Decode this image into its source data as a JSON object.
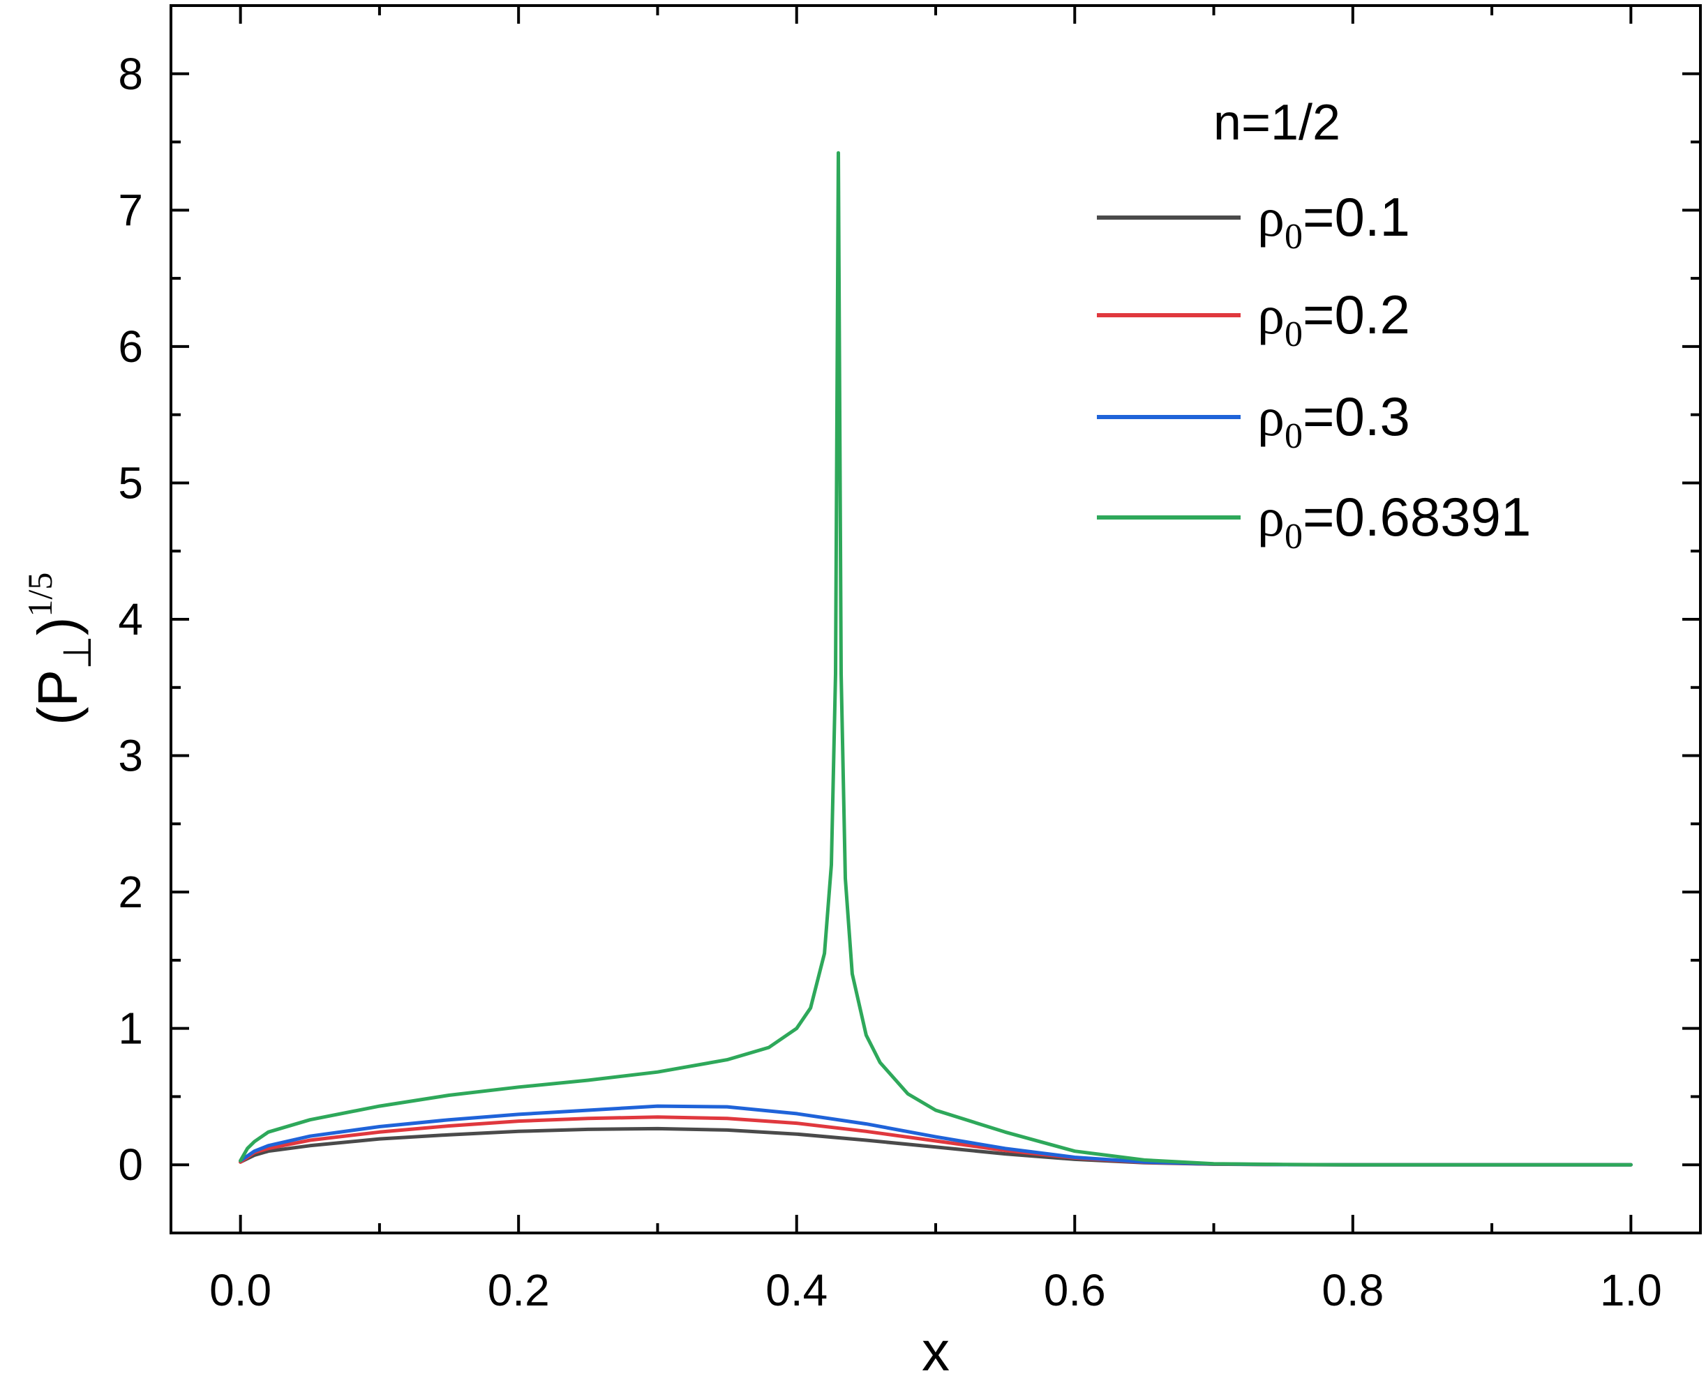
{
  "chart_data": {
    "type": "line",
    "xlabel": "x",
    "ylabel": {
      "open": "(P",
      "sub": "⊥",
      "close": ")",
      "sup": "1/5"
    },
    "xlim": [
      -0.05,
      1.05
    ],
    "ylim": [
      -0.5,
      8.5
    ],
    "xticks": [
      0.0,
      0.2,
      0.4,
      0.6,
      0.8,
      1.0
    ],
    "xtick_labels": [
      "0.0",
      "0.2",
      "0.4",
      "0.6",
      "0.8",
      "1.0"
    ],
    "yticks": [
      0,
      1,
      2,
      3,
      4,
      5,
      6,
      7,
      8
    ],
    "ytick_labels": [
      "0",
      "1",
      "2",
      "3",
      "4",
      "5",
      "6",
      "7",
      "8"
    ],
    "grid": false,
    "legend_title": "n=1/2",
    "legend_position": "top-right",
    "series": [
      {
        "name": "ρ0=0.1",
        "label_symbol": "ρ",
        "label_sub": "0",
        "label_value": "=0.1",
        "color": "#4a4a4a",
        "x": [
          0.0,
          0.01,
          0.02,
          0.05,
          0.1,
          0.15,
          0.2,
          0.25,
          0.3,
          0.35,
          0.4,
          0.45,
          0.5,
          0.55,
          0.6,
          0.65,
          0.7,
          0.75,
          0.8,
          0.9,
          1.0
        ],
        "y": [
          0.02,
          0.07,
          0.1,
          0.14,
          0.19,
          0.22,
          0.245,
          0.26,
          0.265,
          0.255,
          0.225,
          0.18,
          0.13,
          0.08,
          0.04,
          0.015,
          0.004,
          0.001,
          0.0,
          0.0,
          0.0
        ]
      },
      {
        "name": "ρ0=0.2",
        "label_symbol": "ρ",
        "label_sub": "0",
        "label_value": "=0.2",
        "color": "#e0383e",
        "x": [
          0.0,
          0.01,
          0.02,
          0.05,
          0.1,
          0.15,
          0.2,
          0.25,
          0.3,
          0.35,
          0.4,
          0.45,
          0.5,
          0.55,
          0.6,
          0.65,
          0.7,
          0.75,
          0.8,
          0.9,
          1.0
        ],
        "y": [
          0.02,
          0.09,
          0.12,
          0.18,
          0.24,
          0.285,
          0.32,
          0.34,
          0.35,
          0.34,
          0.305,
          0.245,
          0.175,
          0.105,
          0.05,
          0.018,
          0.005,
          0.001,
          0.0,
          0.0,
          0.0
        ]
      },
      {
        "name": "ρ0=0.3",
        "label_symbol": "ρ",
        "label_sub": "0",
        "label_value": "=0.3",
        "color": "#1f63d9",
        "x": [
          0.0,
          0.01,
          0.02,
          0.05,
          0.1,
          0.15,
          0.2,
          0.25,
          0.3,
          0.35,
          0.4,
          0.45,
          0.5,
          0.55,
          0.6,
          0.65,
          0.7,
          0.75,
          0.8,
          0.9,
          1.0
        ],
        "y": [
          0.03,
          0.1,
          0.14,
          0.21,
          0.28,
          0.33,
          0.37,
          0.4,
          0.43,
          0.425,
          0.375,
          0.3,
          0.205,
          0.12,
          0.055,
          0.02,
          0.006,
          0.001,
          0.0,
          0.0,
          0.0
        ]
      },
      {
        "name": "ρ0=0.68391",
        "label_symbol": "ρ",
        "label_sub": "0",
        "label_value": "=0.68391",
        "color": "#2ea85a",
        "x": [
          0.0,
          0.005,
          0.01,
          0.02,
          0.05,
          0.1,
          0.15,
          0.2,
          0.25,
          0.3,
          0.35,
          0.38,
          0.4,
          0.41,
          0.42,
          0.425,
          0.428,
          0.43,
          0.432,
          0.435,
          0.44,
          0.45,
          0.46,
          0.48,
          0.5,
          0.55,
          0.6,
          0.65,
          0.7,
          0.75,
          0.8,
          0.9,
          1.0
        ],
        "y": [
          0.03,
          0.12,
          0.17,
          0.24,
          0.33,
          0.43,
          0.51,
          0.57,
          0.62,
          0.68,
          0.77,
          0.86,
          1.0,
          1.15,
          1.55,
          2.2,
          3.6,
          7.42,
          3.6,
          2.1,
          1.4,
          0.95,
          0.75,
          0.52,
          0.4,
          0.24,
          0.1,
          0.035,
          0.008,
          0.002,
          0.0,
          0.0,
          0.0
        ]
      }
    ]
  }
}
